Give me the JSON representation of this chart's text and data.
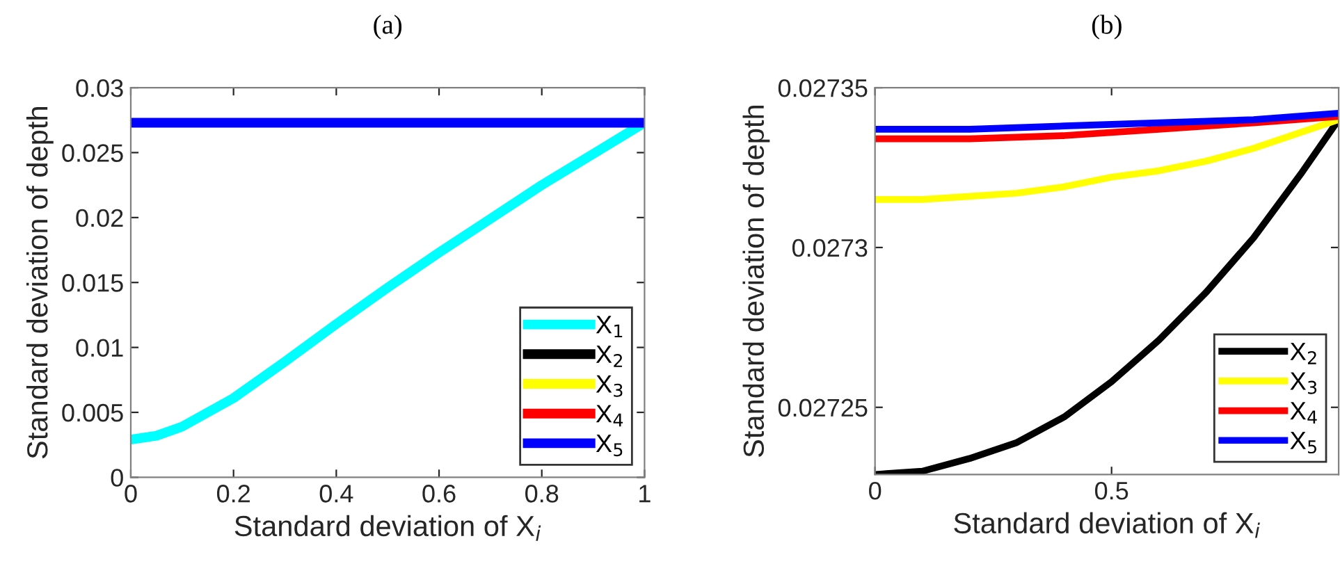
{
  "chart_data": [
    {
      "type": "line",
      "title": "(a)",
      "xlabel": "Standard deviation of X$_{i}$",
      "ylabel": "Standard deviation of depth",
      "xlim": [
        0,
        1
      ],
      "ylim": [
        0,
        0.03
      ],
      "xticks": [
        0,
        0.2,
        0.4,
        0.6,
        0.8,
        1
      ],
      "yticks": [
        0,
        0.005,
        0.01,
        0.015,
        0.02,
        0.025,
        0.03
      ],
      "grid": false,
      "legend": "bottom right",
      "series": [
        {
          "name": "X$_{1}$",
          "color": "#00ffff",
          "x": [
            0,
            0.05,
            0.1,
            0.2,
            0.3,
            0.4,
            0.5,
            0.6,
            0.7,
            0.8,
            0.9,
            1
          ],
          "values": [
            0.0029,
            0.0032,
            0.0039,
            0.0061,
            0.0089,
            0.0118,
            0.0146,
            0.0173,
            0.0199,
            0.0225,
            0.0249,
            0.0273
          ]
        },
        {
          "name": "X$_{2}$",
          "color": "#000000"
        },
        {
          "name": "X$_{3}$",
          "color": "#ffff00"
        },
        {
          "name": "X$_{4}$",
          "color": "#ff0000"
        },
        {
          "name": "X$_{5}$",
          "color": "#0000ff",
          "x": [
            0,
            1
          ],
          "values": [
            0.0273,
            0.0273
          ]
        }
      ]
    },
    {
      "type": "line",
      "title": "(b)",
      "xlabel": "Standard deviation of X$_{i}$",
      "ylabel": "Standard deviation of depth",
      "xlim": [
        0,
        0.98
      ],
      "ylim": [
        0.027229,
        0.02735
      ],
      "xticks": [
        0,
        0.5
      ],
      "yticks": [
        0.02725,
        0.0273,
        0.02735
      ],
      "grid": false,
      "legend": "bottom right",
      "series": [
        {
          "name": "X$_{2}$",
          "color": "#000000",
          "x": [
            0,
            0.1,
            0.2,
            0.3,
            0.4,
            0.5,
            0.6,
            0.7,
            0.8,
            0.9,
            0.98
          ],
          "values": [
            0.027229,
            0.02723,
            0.027234,
            0.027239,
            0.027247,
            0.027258,
            0.027271,
            0.027286,
            0.027303,
            0.027323,
            0.02734
          ]
        },
        {
          "name": "X$_{3}$",
          "color": "#ffff00",
          "x": [
            0,
            0.1,
            0.2,
            0.3,
            0.4,
            0.5,
            0.6,
            0.7,
            0.8,
            0.9,
            0.98
          ],
          "values": [
            0.027315,
            0.027315,
            0.027316,
            0.027317,
            0.027319,
            0.027322,
            0.027324,
            0.027327,
            0.027331,
            0.027336,
            0.02734
          ]
        },
        {
          "name": "X$_{4}$",
          "color": "#ff0000",
          "x": [
            0,
            0.2,
            0.4,
            0.6,
            0.8,
            0.98
          ],
          "values": [
            0.027334,
            0.027334,
            0.027335,
            0.027337,
            0.027339,
            0.027341
          ]
        },
        {
          "name": "X$_{5}$",
          "color": "#0000ff",
          "x": [
            0,
            0.2,
            0.4,
            0.6,
            0.8,
            0.98
          ],
          "values": [
            0.027337,
            0.027337,
            0.027338,
            0.027339,
            0.02734,
            0.027342
          ]
        }
      ]
    }
  ]
}
